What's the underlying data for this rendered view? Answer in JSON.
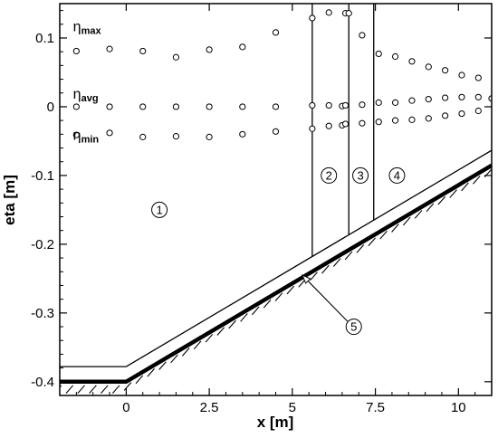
{
  "chart_data": {
    "type": "scatter",
    "title": "",
    "xlabel": "x [m]",
    "ylabel": "eta [m]",
    "xlim": [
      -2.0,
      11.0
    ],
    "ylim": [
      -0.42,
      0.15
    ],
    "x_ticks": [
      0,
      2.5,
      5,
      7.5,
      10
    ],
    "x_tick_labels": [
      "0",
      "2.5",
      "5",
      "7.5",
      "10"
    ],
    "y_ticks": [
      0.1,
      0,
      -0.1,
      -0.2,
      -0.3,
      -0.4
    ],
    "y_tick_labels": [
      "0.1",
      "0",
      "-0.1",
      "-0.2",
      "-0.3",
      "-0.4"
    ],
    "grid": false,
    "series": [
      {
        "name": "ηmax",
        "label_main": "η",
        "label_sub": "max",
        "marker": "open-circle",
        "x": [
          -1.5,
          -0.5,
          0.5,
          1.5,
          2.5,
          3.5,
          4.5,
          5.6,
          6.1,
          6.6,
          6.7,
          7.1,
          7.6,
          8.1,
          8.6,
          9.1,
          9.6,
          10.1,
          10.6
        ],
        "y": [
          0.081,
          0.084,
          0.081,
          0.072,
          0.083,
          0.087,
          0.108,
          0.129,
          0.137,
          0.136,
          0.136,
          0.104,
          0.077,
          0.073,
          0.066,
          0.058,
          0.053,
          0.046,
          0.042
        ]
      },
      {
        "name": "ηavg",
        "label_main": "η",
        "label_sub": "avg",
        "marker": "open-circle",
        "x": [
          -1.5,
          -0.5,
          0.5,
          1.5,
          2.5,
          3.5,
          4.5,
          5.6,
          6.1,
          6.5,
          6.6,
          7.1,
          7.6,
          8.1,
          8.6,
          9.1,
          9.6,
          10.1,
          10.6,
          11.0
        ],
        "y": [
          0.0,
          0.0,
          0.0,
          0.0,
          0.0,
          0.0,
          0.0,
          0.002,
          0.002,
          0.001,
          0.002,
          0.003,
          0.006,
          0.006,
          0.009,
          0.011,
          0.013,
          0.014,
          0.014,
          0.012
        ]
      },
      {
        "name": "ηmin",
        "label_main": "η",
        "label_sub": "min",
        "marker": "open-circle",
        "x": [
          -1.5,
          -0.5,
          0.5,
          1.5,
          2.5,
          3.5,
          4.5,
          5.6,
          6.1,
          6.5,
          6.6,
          7.1,
          7.6,
          8.1,
          8.6,
          9.1,
          9.6,
          10.1,
          10.6
        ],
        "y": [
          -0.041,
          -0.038,
          -0.044,
          -0.043,
          -0.044,
          -0.04,
          -0.036,
          -0.032,
          -0.028,
          -0.027,
          -0.025,
          -0.024,
          -0.022,
          -0.02,
          -0.019,
          -0.017,
          -0.013,
          -0.01,
          -0.006
        ]
      }
    ],
    "bathymetry": {
      "offshore_depth": -0.4,
      "toe_x": 0.0,
      "slope": 0.0286,
      "crest_x": 11.0,
      "surface_offset": 0.022
    },
    "vertical_lines": [
      {
        "x": 5.6,
        "y_top": 0.15
      },
      {
        "x": 6.7,
        "y_top": 0.15
      },
      {
        "x": 7.45,
        "y_top": 0.15
      }
    ],
    "regions": [
      {
        "label": "1",
        "x": 1.0,
        "y": -0.15
      },
      {
        "label": "2",
        "x": 6.1,
        "y": -0.1
      },
      {
        "label": "3",
        "x": 7.05,
        "y": -0.1
      },
      {
        "label": "4",
        "x": 8.15,
        "y": -0.1
      }
    ],
    "annotation": {
      "label": "5",
      "x": 6.85,
      "y": -0.32,
      "arrow_to_x": 5.3,
      "arrow_to_y": -0.245
    },
    "label_anchor_x": -1.6,
    "label_anchor_y": {
      "ηmax": 0.11,
      "ηavg": 0.012,
      "ηmin": -0.048
    }
  }
}
